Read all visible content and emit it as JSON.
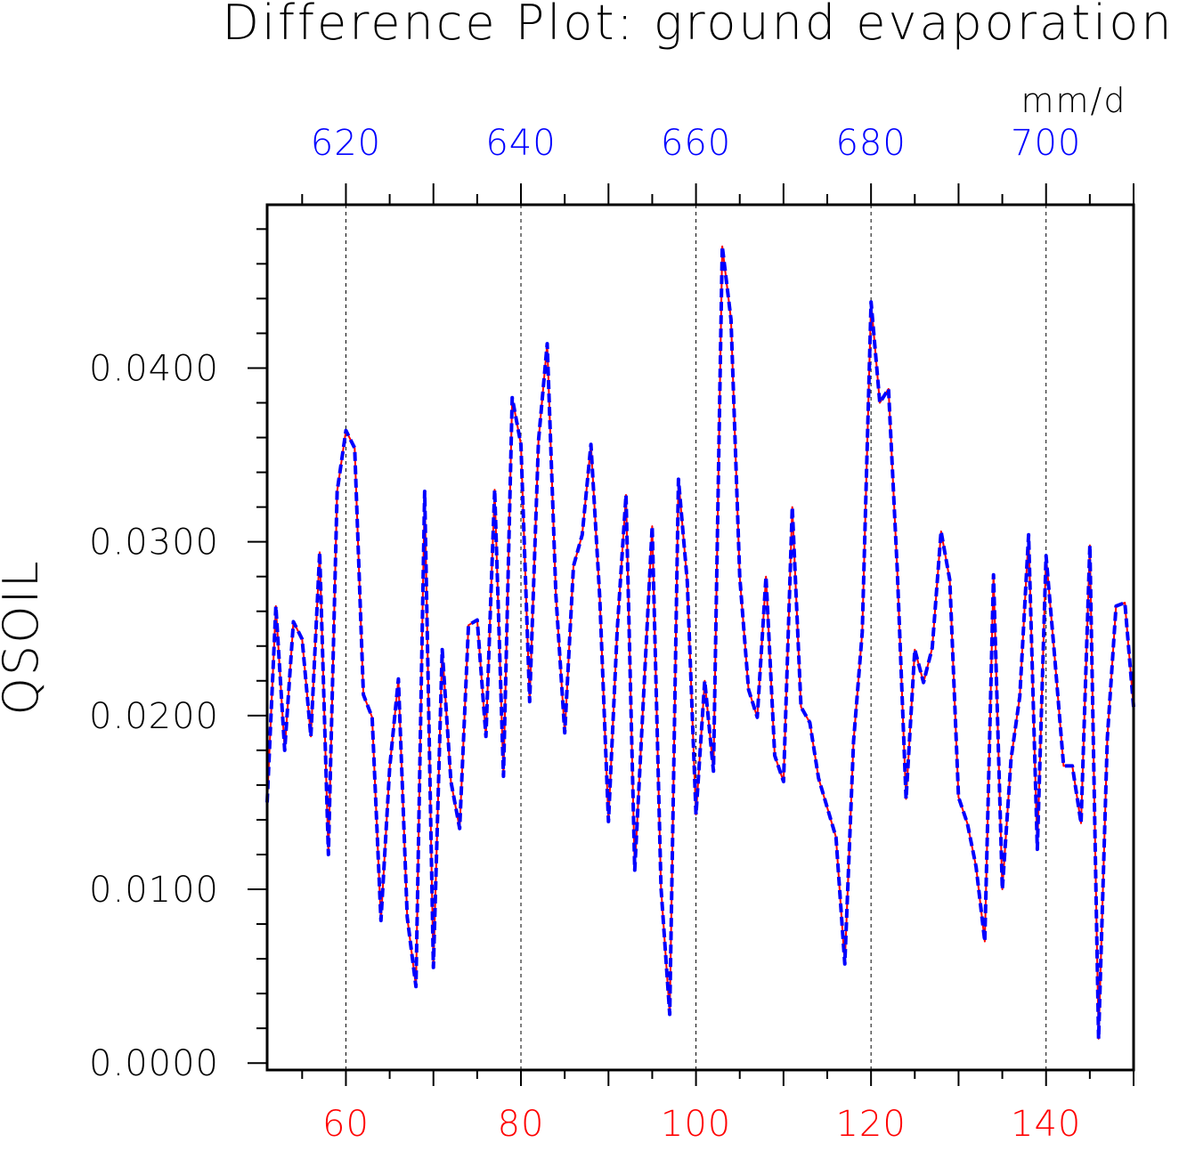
{
  "chart_data": {
    "type": "line",
    "title": "Difference Plot: ground evaporation",
    "unit_label": "mm/d",
    "ylabel": "QSOIL",
    "xlabel": "",
    "xlim": [
      51,
      150
    ],
    "ylim": [
      -0.0004,
      0.0494
    ],
    "x_ticks": [
      60,
      80,
      100,
      120,
      140
    ],
    "x_ticks_color": "#ff0000",
    "x2_ticks": [
      620,
      640,
      660,
      680,
      700
    ],
    "x2_ticks_color": "#0000ff",
    "x2_offset": 560,
    "y_ticks": [
      "0.0000",
      "0.0100",
      "0.0200",
      "0.0300",
      "0.0400"
    ],
    "y_tick_values": [
      0.0,
      0.01,
      0.02,
      0.03,
      0.04
    ],
    "vertical_grid": true,
    "grid_style": "dashed",
    "x": [
      51,
      52,
      53,
      54,
      55,
      56,
      57,
      58,
      59,
      60,
      61,
      62,
      63,
      64,
      65,
      66,
      67,
      68,
      69,
      70,
      71,
      72,
      73,
      74,
      75,
      76,
      77,
      78,
      79,
      80,
      81,
      82,
      83,
      84,
      85,
      86,
      87,
      88,
      89,
      90,
      91,
      92,
      93,
      94,
      95,
      96,
      97,
      98,
      99,
      100,
      101,
      102,
      103,
      104,
      105,
      106,
      107,
      108,
      109,
      110,
      111,
      112,
      113,
      114,
      115,
      116,
      117,
      118,
      119,
      120,
      121,
      122,
      123,
      124,
      125,
      126,
      127,
      128,
      129,
      130,
      131,
      132,
      133,
      134,
      135,
      136,
      137,
      138,
      139,
      140,
      141,
      142,
      143,
      144,
      145,
      146,
      147,
      148,
      149,
      150
    ],
    "series": [
      {
        "color": "#ff0000",
        "style": "solid",
        "values": [
          0.015,
          0.0263,
          0.018,
          0.0254,
          0.0244,
          0.0188,
          0.0294,
          0.012,
          0.0329,
          0.0364,
          0.0354,
          0.0212,
          0.0199,
          0.0082,
          0.017,
          0.0221,
          0.0084,
          0.0044,
          0.0329,
          0.0055,
          0.0238,
          0.0162,
          0.0135,
          0.0252,
          0.0255,
          0.0188,
          0.033,
          0.0165,
          0.0383,
          0.0356,
          0.0208,
          0.0358,
          0.0414,
          0.0269,
          0.019,
          0.0286,
          0.0304,
          0.0356,
          0.0268,
          0.0139,
          0.0249,
          0.0327,
          0.0111,
          0.021,
          0.0309,
          0.0101,
          0.0028,
          0.0336,
          0.0277,
          0.0143,
          0.022,
          0.0168,
          0.047,
          0.0428,
          0.028,
          0.0215,
          0.0199,
          0.028,
          0.0177,
          0.0162,
          0.032,
          0.0205,
          0.0196,
          0.0164,
          0.0147,
          0.013,
          0.0057,
          0.0185,
          0.0248,
          0.0438,
          0.038,
          0.0388,
          0.0284,
          0.0152,
          0.0238,
          0.0219,
          0.0239,
          0.0306,
          0.0278,
          0.0153,
          0.0138,
          0.0113,
          0.007,
          0.0281,
          0.01,
          0.0175,
          0.0211,
          0.0304,
          0.0123,
          0.0292,
          0.0233,
          0.0171,
          0.0171,
          0.0138,
          0.0298,
          0.0014,
          0.0187,
          0.0263,
          0.0265,
          0.0205
        ]
      },
      {
        "color": "#0000ff",
        "style": "dashed",
        "values": [
          0.015,
          0.0263,
          0.018,
          0.0254,
          0.0244,
          0.0188,
          0.0294,
          0.012,
          0.0329,
          0.0364,
          0.0354,
          0.0212,
          0.0199,
          0.0082,
          0.017,
          0.0221,
          0.0084,
          0.0044,
          0.0329,
          0.0055,
          0.0238,
          0.0162,
          0.0135,
          0.0252,
          0.0255,
          0.0188,
          0.033,
          0.0165,
          0.0383,
          0.0356,
          0.0208,
          0.0358,
          0.0414,
          0.0269,
          0.019,
          0.0286,
          0.0304,
          0.0356,
          0.0268,
          0.0139,
          0.0249,
          0.0327,
          0.0111,
          0.021,
          0.0309,
          0.0101,
          0.0028,
          0.0336,
          0.0277,
          0.0143,
          0.022,
          0.0168,
          0.047,
          0.0428,
          0.028,
          0.0215,
          0.0199,
          0.028,
          0.0177,
          0.0162,
          0.032,
          0.0205,
          0.0196,
          0.0164,
          0.0147,
          0.013,
          0.0057,
          0.0185,
          0.0248,
          0.0438,
          0.038,
          0.0388,
          0.0284,
          0.0152,
          0.0238,
          0.0219,
          0.0239,
          0.0306,
          0.0278,
          0.0153,
          0.0138,
          0.0113,
          0.007,
          0.0281,
          0.01,
          0.0175,
          0.0211,
          0.0304,
          0.0123,
          0.0292,
          0.0233,
          0.0171,
          0.0171,
          0.0138,
          0.0298,
          0.0014,
          0.0187,
          0.0263,
          0.0265,
          0.0205
        ]
      }
    ]
  }
}
